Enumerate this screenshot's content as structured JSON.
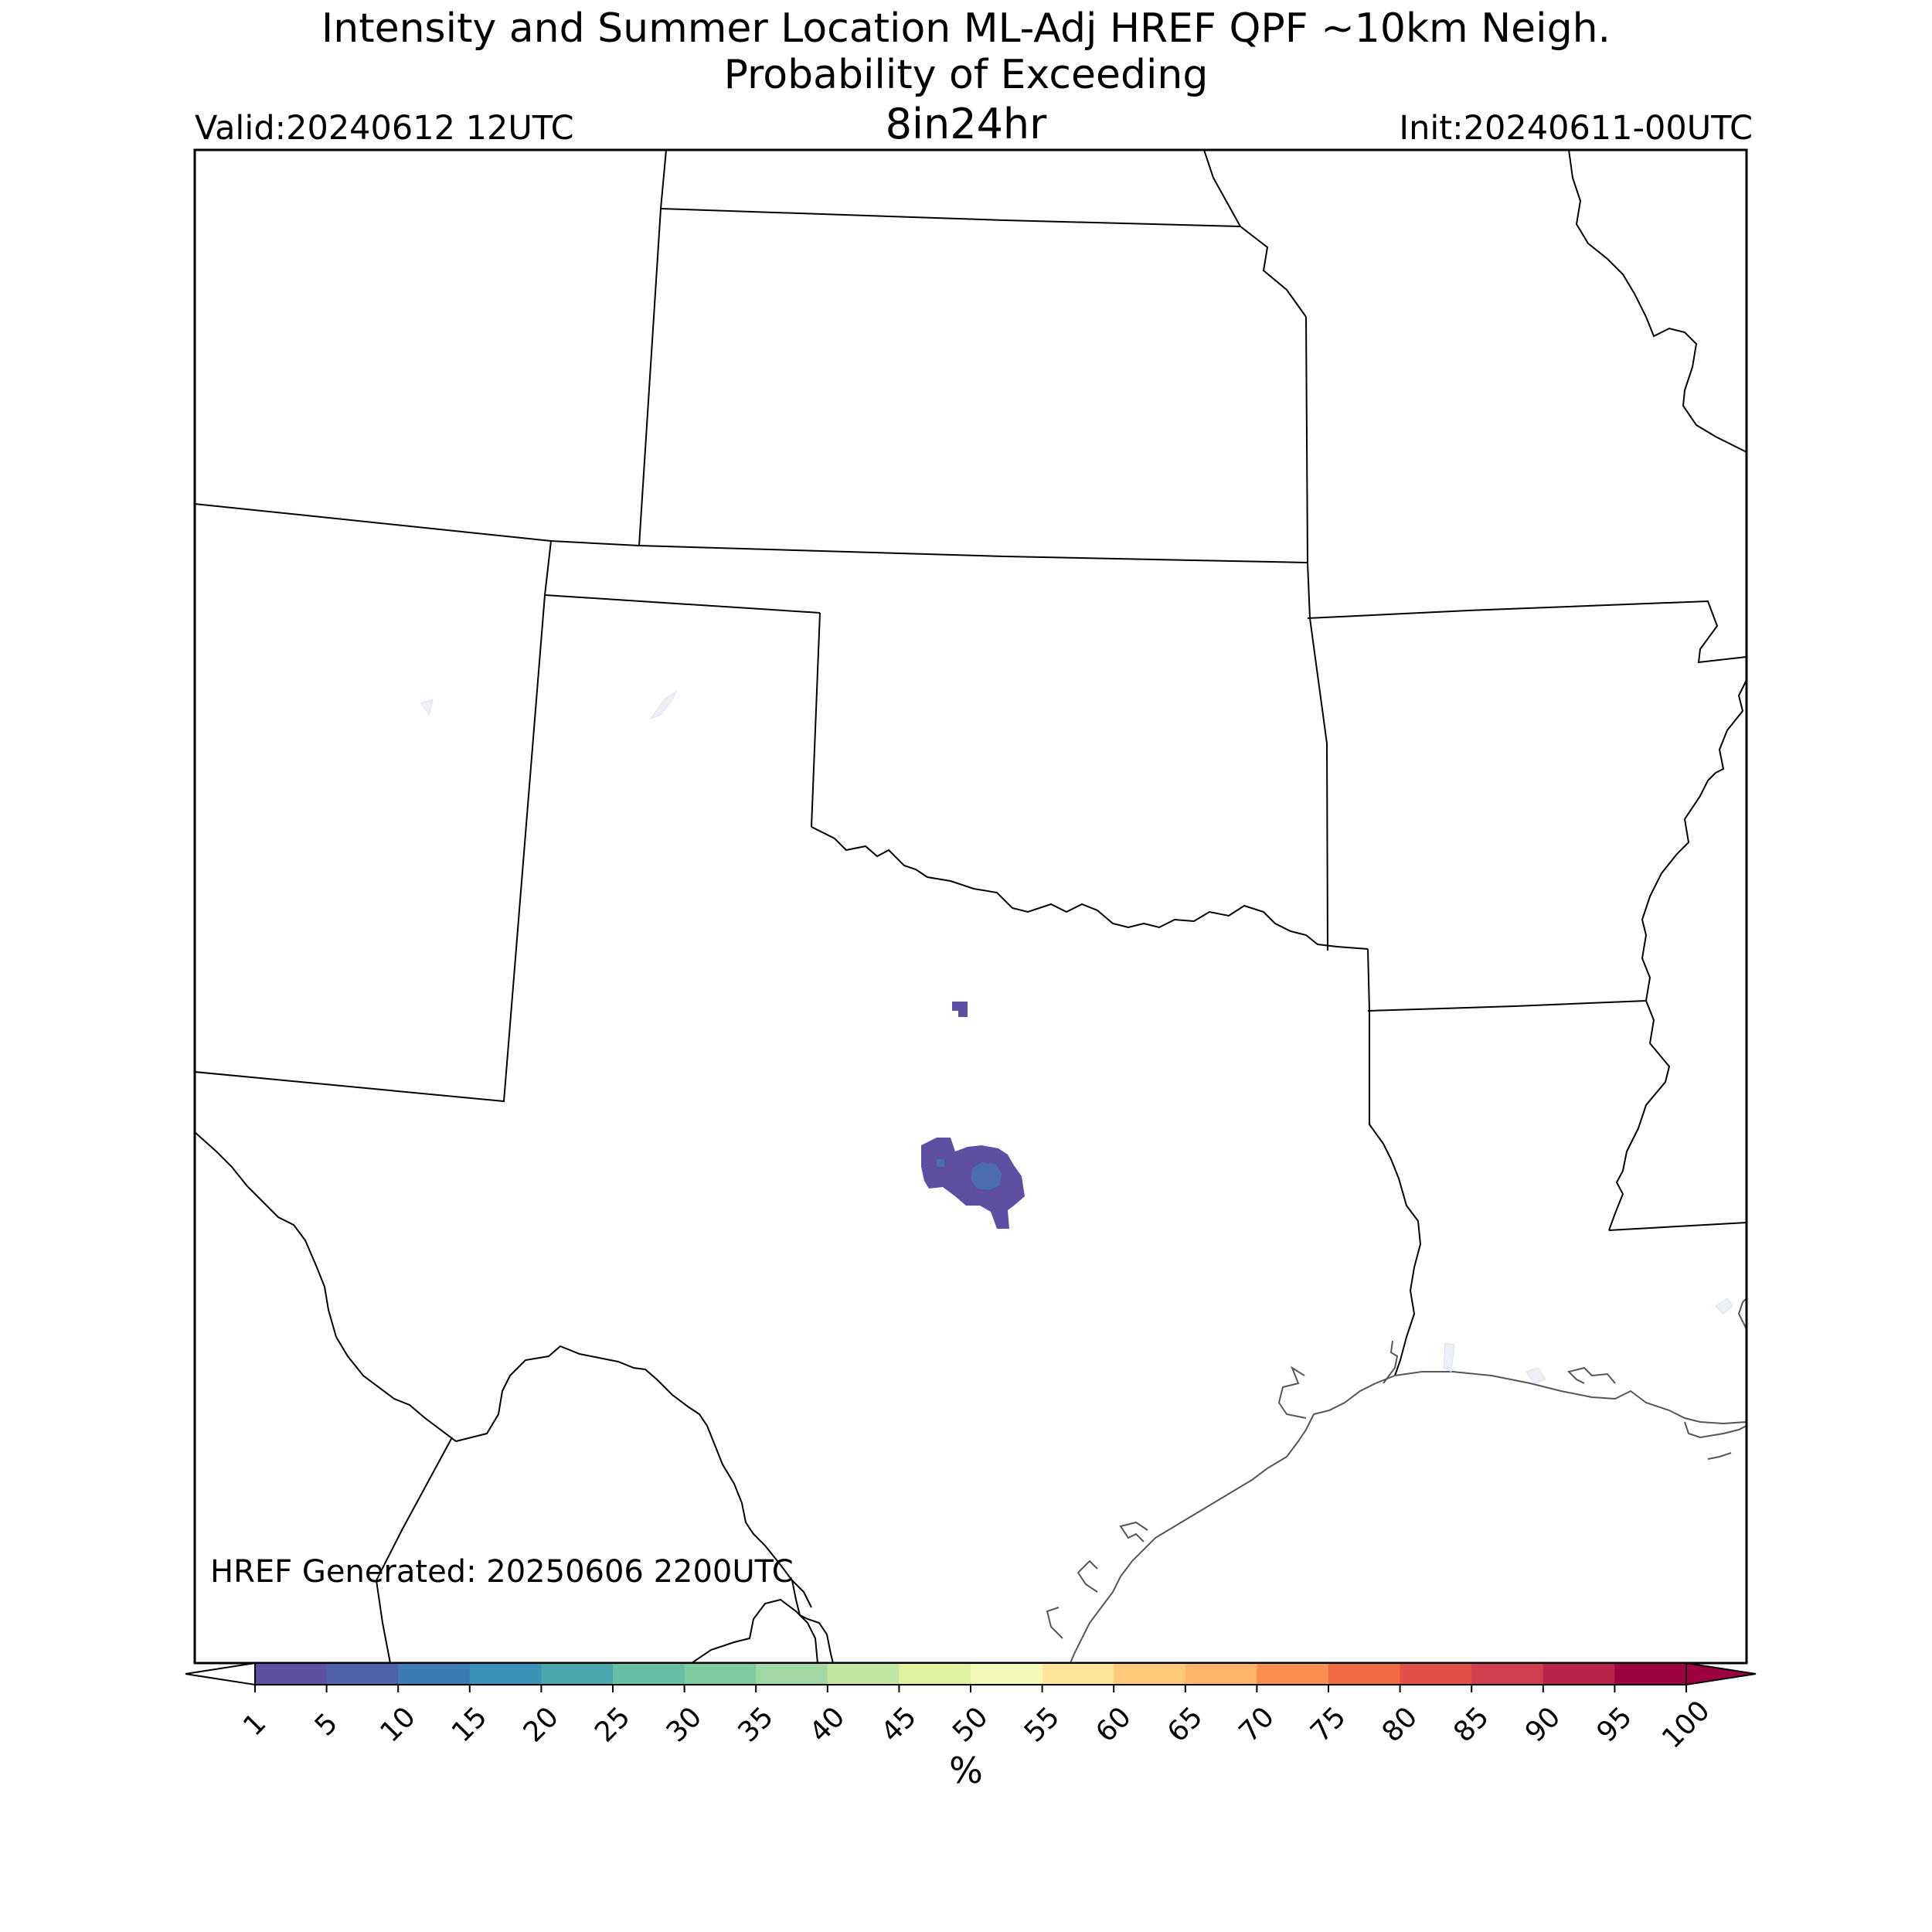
{
  "title": {
    "line1": "Intensity and Summer Location ML-Adj HREF QPF ~10km Neigh.",
    "line2": "Probability of Exceeding",
    "threshold": "8in24hr"
  },
  "valid": "Valid:20240612 12UTC",
  "init": "Init:20240611-00UTC",
  "generated": "HREF Generated: 20250606 2200UTC",
  "colorbar": {
    "unit": "%",
    "ticks": [
      "1",
      "5",
      "10",
      "15",
      "20",
      "25",
      "30",
      "35",
      "40",
      "45",
      "50",
      "55",
      "60",
      "65",
      "70",
      "75",
      "80",
      "85",
      "90",
      "95",
      "100"
    ],
    "colors": [
      "#5e4fa2",
      "#4f63ac",
      "#3c7bb6",
      "#3a92b7",
      "#4aa6af",
      "#66bea5",
      "#80ca9f",
      "#a1d7a3",
      "#c1e5a2",
      "#dff2a0",
      "#f5f9b8",
      "#fee59a",
      "#fec97a",
      "#fdb468",
      "#f98e52",
      "#f06a41",
      "#e24f48",
      "#d13e4f",
      "#bb244a",
      "#9e0142"
    ]
  },
  "map": {
    "regions": [
      "Kansas",
      "Missouri",
      "Oklahoma",
      "Arkansas",
      "Texas",
      "New Mexico",
      "Colorado",
      "Nebraska",
      "Louisiana",
      "Mexico"
    ],
    "probability_areas": [
      {
        "location": "north-central Texas",
        "level": "1-5"
      },
      {
        "location": "central Texas",
        "level": "1-10"
      }
    ]
  }
}
